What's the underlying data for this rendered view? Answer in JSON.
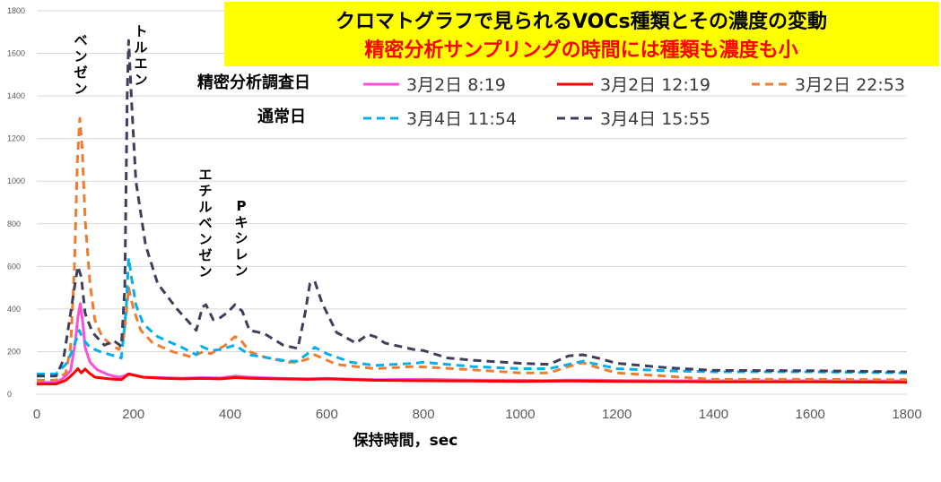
{
  "chart_data": {
    "type": "line",
    "title": "クロマトグラフで見られるVOCs種類とその濃度の変動",
    "subtitle": "精密分析サンプリングの時間には種類も濃度も小",
    "xlabel": "保持時間，sec",
    "ylabel": "",
    "xlim": [
      0,
      1800
    ],
    "ylim": [
      0,
      1800
    ],
    "xticks": [
      "0",
      "200",
      "400",
      "600",
      "800",
      "1000",
      "1200",
      "1400",
      "1600",
      "1800"
    ],
    "yticks": [
      "0",
      "200",
      "400",
      "600",
      "800",
      "1000",
      "1200",
      "1400",
      "1600",
      "1800"
    ],
    "grid": "horizontal",
    "legend": {
      "placement": "top-right",
      "groups": [
        {
          "label": "精密分析調査日",
          "series": [
            0,
            1,
            2
          ]
        },
        {
          "label": "通常日",
          "series": [
            3,
            4
          ]
        }
      ]
    },
    "annotations": [
      {
        "text": "ベンゼン",
        "x": 90
      },
      {
        "text": "トルエン",
        "x": 190
      },
      {
        "text": "エチルベンゼン",
        "x": 350
      },
      {
        "text": "Pキシレン",
        "x": 420
      }
    ],
    "series": [
      {
        "name": "3月2日 8:19",
        "color": "#ff4fd8",
        "dash": "solid",
        "points": [
          [
            0,
            55
          ],
          [
            40,
            55
          ],
          [
            55,
            75
          ],
          [
            70,
            110
          ],
          [
            80,
            250
          ],
          [
            85,
            360
          ],
          [
            90,
            425
          ],
          [
            95,
            340
          ],
          [
            100,
            220
          ],
          [
            110,
            150
          ],
          [
            125,
            115
          ],
          [
            150,
            90
          ],
          [
            170,
            80
          ],
          [
            180,
            85
          ],
          [
            190,
            95
          ],
          [
            200,
            90
          ],
          [
            220,
            80
          ],
          [
            260,
            78
          ],
          [
            300,
            75
          ],
          [
            340,
            78
          ],
          [
            380,
            76
          ],
          [
            410,
            85
          ],
          [
            440,
            80
          ],
          [
            500,
            75
          ],
          [
            560,
            72
          ],
          [
            600,
            74
          ],
          [
            700,
            68
          ],
          [
            800,
            70
          ],
          [
            900,
            66
          ],
          [
            1000,
            65
          ],
          [
            1050,
            64
          ],
          [
            1100,
            66
          ],
          [
            1150,
            66
          ],
          [
            1200,
            64
          ],
          [
            1400,
            63
          ],
          [
            1600,
            63
          ],
          [
            1800,
            62
          ]
        ]
      },
      {
        "name": "3月2日 12:19",
        "color": "#ff0000",
        "dash": "solid",
        "points": [
          [
            0,
            48
          ],
          [
            40,
            48
          ],
          [
            60,
            65
          ],
          [
            75,
            95
          ],
          [
            85,
            120
          ],
          [
            92,
            100
          ],
          [
            100,
            118
          ],
          [
            108,
            100
          ],
          [
            120,
            80
          ],
          [
            150,
            72
          ],
          [
            175,
            68
          ],
          [
            190,
            95
          ],
          [
            200,
            90
          ],
          [
            220,
            80
          ],
          [
            260,
            75
          ],
          [
            300,
            72
          ],
          [
            340,
            74
          ],
          [
            380,
            72
          ],
          [
            410,
            78
          ],
          [
            440,
            75
          ],
          [
            500,
            72
          ],
          [
            560,
            70
          ],
          [
            600,
            72
          ],
          [
            700,
            65
          ],
          [
            800,
            63
          ],
          [
            900,
            62
          ],
          [
            1000,
            60
          ],
          [
            1100,
            62
          ],
          [
            1200,
            60
          ],
          [
            1400,
            58
          ],
          [
            1600,
            58
          ],
          [
            1800,
            56
          ]
        ]
      },
      {
        "name": "3月2日 22:53",
        "color": "#ed7d31",
        "dash": "dash",
        "points": [
          [
            0,
            65
          ],
          [
            40,
            65
          ],
          [
            60,
            100
          ],
          [
            70,
            220
          ],
          [
            78,
            600
          ],
          [
            84,
            1100
          ],
          [
            89,
            1295
          ],
          [
            94,
            1150
          ],
          [
            100,
            820
          ],
          [
            110,
            520
          ],
          [
            120,
            350
          ],
          [
            135,
            270
          ],
          [
            155,
            230
          ],
          [
            170,
            210
          ],
          [
            180,
            270
          ],
          [
            185,
            380
          ],
          [
            190,
            500
          ],
          [
            200,
            400
          ],
          [
            215,
            300
          ],
          [
            240,
            240
          ],
          [
            280,
            200
          ],
          [
            320,
            175
          ],
          [
            345,
            200
          ],
          [
            360,
            190
          ],
          [
            390,
            230
          ],
          [
            410,
            270
          ],
          [
            420,
            260
          ],
          [
            440,
            200
          ],
          [
            470,
            175
          ],
          [
            520,
            150
          ],
          [
            540,
            150
          ],
          [
            560,
            165
          ],
          [
            575,
            185
          ],
          [
            590,
            170
          ],
          [
            620,
            140
          ],
          [
            700,
            120
          ],
          [
            780,
            130
          ],
          [
            800,
            128
          ],
          [
            900,
            115
          ],
          [
            1000,
            100
          ],
          [
            1060,
            100
          ],
          [
            1100,
            130
          ],
          [
            1130,
            148
          ],
          [
            1160,
            125
          ],
          [
            1200,
            100
          ],
          [
            1300,
            85
          ],
          [
            1400,
            70
          ],
          [
            1600,
            70
          ],
          [
            1800,
            68
          ]
        ]
      },
      {
        "name": "3月4日 11:54",
        "color": "#00b0f0",
        "dash": "dash",
        "points": [
          [
            0,
            95
          ],
          [
            40,
            95
          ],
          [
            60,
            140
          ],
          [
            75,
            210
          ],
          [
            88,
            300
          ],
          [
            95,
            260
          ],
          [
            110,
            220
          ],
          [
            130,
            200
          ],
          [
            160,
            180
          ],
          [
            175,
            170
          ],
          [
            185,
            400
          ],
          [
            190,
            640
          ],
          [
            195,
            560
          ],
          [
            205,
            420
          ],
          [
            220,
            330
          ],
          [
            250,
            270
          ],
          [
            300,
            220
          ],
          [
            330,
            185
          ],
          [
            340,
            225
          ],
          [
            360,
            205
          ],
          [
            380,
            210
          ],
          [
            410,
            230
          ],
          [
            440,
            185
          ],
          [
            480,
            170
          ],
          [
            520,
            155
          ],
          [
            540,
            155
          ],
          [
            560,
            190
          ],
          [
            575,
            220
          ],
          [
            600,
            190
          ],
          [
            650,
            150
          ],
          [
            700,
            135
          ],
          [
            780,
            145
          ],
          [
            800,
            150
          ],
          [
            850,
            140
          ],
          [
            900,
            130
          ],
          [
            1000,
            120
          ],
          [
            1060,
            120
          ],
          [
            1100,
            140
          ],
          [
            1130,
            155
          ],
          [
            1160,
            140
          ],
          [
            1200,
            120
          ],
          [
            1300,
            110
          ],
          [
            1400,
            105
          ],
          [
            1600,
            105
          ],
          [
            1800,
            100
          ]
        ]
      },
      {
        "name": "3月4日 15:55",
        "color": "#3f3f5c",
        "dash": "dash",
        "points": [
          [
            0,
            85
          ],
          [
            40,
            85
          ],
          [
            55,
            160
          ],
          [
            70,
            380
          ],
          [
            78,
            500
          ],
          [
            85,
            600
          ],
          [
            92,
            550
          ],
          [
            100,
            380
          ],
          [
            115,
            290
          ],
          [
            140,
            230
          ],
          [
            160,
            250
          ],
          [
            175,
            225
          ],
          [
            182,
            500
          ],
          [
            187,
            1400
          ],
          [
            190,
            1660
          ],
          [
            196,
            1380
          ],
          [
            205,
            1000
          ],
          [
            225,
            700
          ],
          [
            250,
            520
          ],
          [
            290,
            400
          ],
          [
            330,
            300
          ],
          [
            343,
            410
          ],
          [
            350,
            420
          ],
          [
            365,
            350
          ],
          [
            380,
            360
          ],
          [
            395,
            385
          ],
          [
            410,
            420
          ],
          [
            425,
            390
          ],
          [
            440,
            300
          ],
          [
            470,
            285
          ],
          [
            510,
            230
          ],
          [
            540,
            215
          ],
          [
            555,
            380
          ],
          [
            565,
            520
          ],
          [
            575,
            530
          ],
          [
            590,
            430
          ],
          [
            620,
            290
          ],
          [
            660,
            240
          ],
          [
            685,
            280
          ],
          [
            700,
            270
          ],
          [
            720,
            240
          ],
          [
            780,
            210
          ],
          [
            800,
            205
          ],
          [
            850,
            170
          ],
          [
            900,
            160
          ],
          [
            1000,
            145
          ],
          [
            1060,
            140
          ],
          [
            1100,
            180
          ],
          [
            1130,
            185
          ],
          [
            1160,
            170
          ],
          [
            1200,
            145
          ],
          [
            1300,
            125
          ],
          [
            1400,
            112
          ],
          [
            1600,
            110
          ],
          [
            1800,
            105
          ]
        ]
      }
    ]
  }
}
